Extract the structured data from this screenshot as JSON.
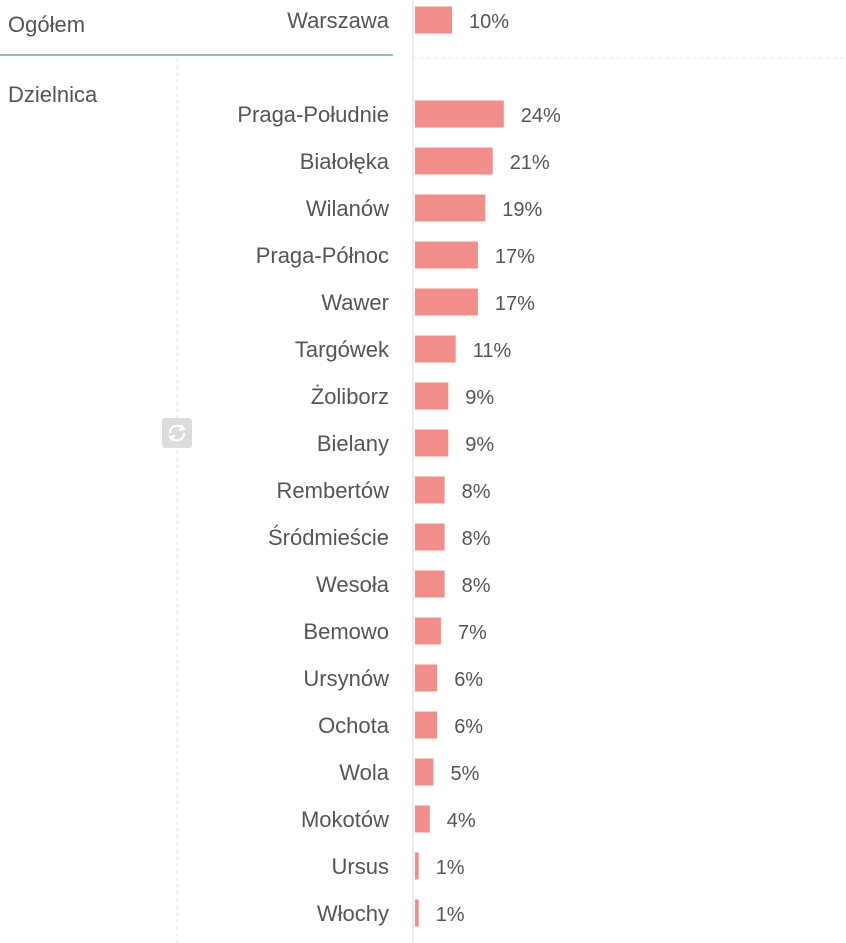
{
  "chart_data": {
    "type": "bar",
    "orientation": "horizontal",
    "unit": "%",
    "groups": [
      {
        "label": "Ogółem",
        "categories": [
          "Warszawa"
        ],
        "values": [
          10
        ]
      },
      {
        "label": "Dzielnica",
        "categories": [
          "Praga-Południe",
          "Białołęka",
          "Wilanów",
          "Praga-Północ",
          "Wawer",
          "Targówek",
          "Żoliborz",
          "Bielany",
          "Rembertów",
          "Śródmieście",
          "Wesoła",
          "Bemowo",
          "Ursynów",
          "Ochota",
          "Wola",
          "Mokotów",
          "Ursus",
          "Włochy"
        ],
        "values": [
          24,
          21,
          19,
          17,
          17,
          11,
          9,
          9,
          8,
          8,
          8,
          7,
          6,
          6,
          5,
          4,
          1,
          1
        ]
      }
    ],
    "bar_color": "#f28e89",
    "grid": false
  },
  "icons": {
    "refresh": "refresh-icon"
  }
}
